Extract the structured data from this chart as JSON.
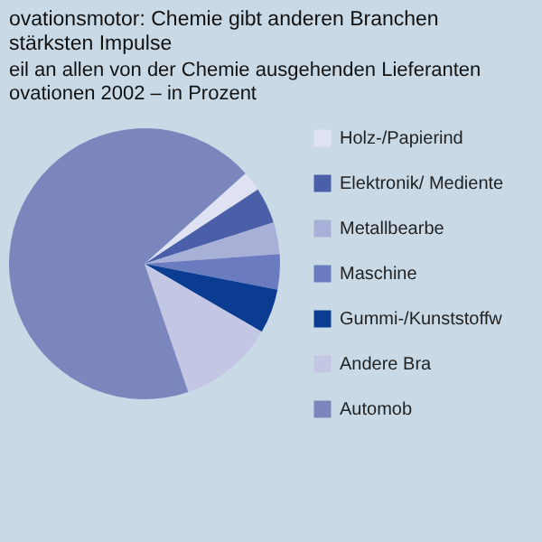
{
  "chart_data": {
    "type": "pie",
    "title": "ovationsmotor: Chemie gibt anderen Branchen\nstärksten Impulse",
    "subtitle": "eil an allen von der Chemie ausgehenden Lieferanten\novationen 2002 – in Prozent",
    "categories": [
      "Holz-/Papierind",
      "Elektronik/ Mediente",
      "Metallbearbe",
      "Maschine",
      "Gummi-/Kunststoffw",
      "Andere Bra",
      "Automob"
    ],
    "values": [
      2.4,
      4.3,
      3.8,
      4.2,
      5.3,
      11.4,
      68.6
    ],
    "colors": [
      "#dfe2f2",
      "#4a5fa8",
      "#a9b0d8",
      "#6a7bbf",
      "#0a3d91",
      "#c3c7e3",
      "#7b86bd"
    ],
    "legend": "right"
  }
}
